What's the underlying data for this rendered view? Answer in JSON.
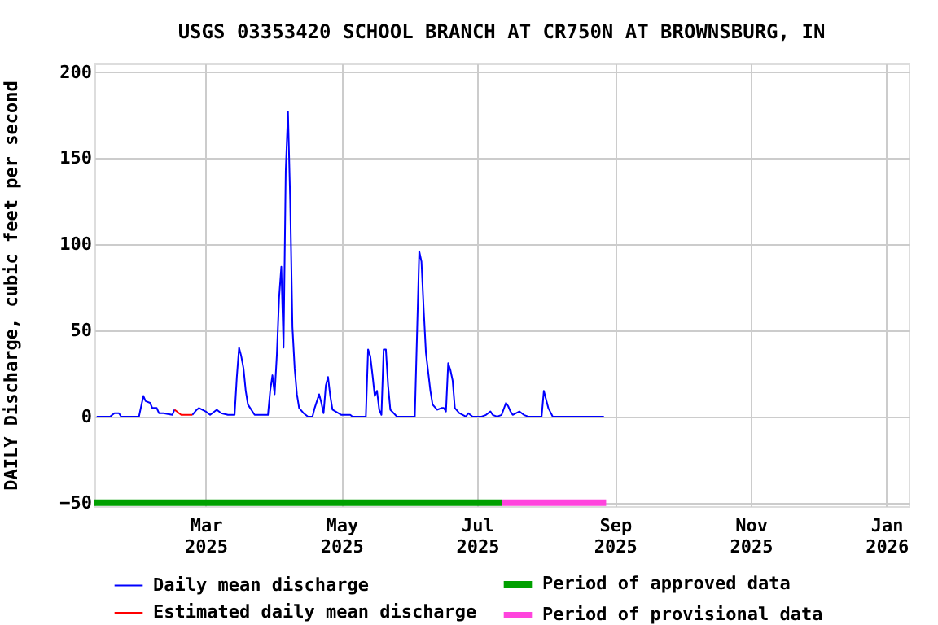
{
  "chart_data": {
    "type": "line",
    "title": "USGS 03353420 SCHOOL BRANCH AT CR750N AT BROWNSBURG, IN",
    "ylabel": "DAILY Discharge, cubic feet per second",
    "xlim": [
      "2025-01-10",
      "2026-01-11"
    ],
    "xticks": [
      {
        "value": "2025-03-01",
        "label": "Mar\n2025"
      },
      {
        "value": "2025-05-01",
        "label": "May\n2025"
      },
      {
        "value": "2025-07-01",
        "label": "Jul\n2025"
      },
      {
        "value": "2025-09-01",
        "label": "Sep\n2025"
      },
      {
        "value": "2025-11-01",
        "label": "Nov\n2025"
      },
      {
        "value": "2026-01-01",
        "label": "Jan\n2026"
      }
    ],
    "ylim": [
      -52,
      205
    ],
    "yticks": [
      -50,
      0,
      50,
      100,
      150,
      200
    ],
    "grid": true,
    "legend": "bottom",
    "marker": "none",
    "line_style": "solid",
    "series": [
      {
        "name": "Daily mean discharge",
        "color": "#0000ff",
        "x": [
          "2025-01-11",
          "2025-01-17",
          "2025-01-19",
          "2025-01-21",
          "2025-01-22",
          "2025-01-30",
          "2025-02-01",
          "2025-02-02",
          "2025-02-04",
          "2025-02-05",
          "2025-02-07",
          "2025-02-08",
          "2025-02-10",
          "2025-02-14",
          "2025-02-15",
          "2025-02-19",
          "2025-02-23",
          "2025-02-25",
          "2025-02-26",
          "2025-03-01",
          "2025-03-03",
          "2025-03-06",
          "2025-03-08",
          "2025-03-11",
          "2025-03-14",
          "2025-03-15",
          "2025-03-16",
          "2025-03-17",
          "2025-03-18",
          "2025-03-19",
          "2025-03-20",
          "2025-03-23",
          "2025-03-29",
          "2025-03-30",
          "2025-03-31",
          "2025-04-01",
          "2025-04-02",
          "2025-04-03",
          "2025-04-04",
          "2025-04-05",
          "2025-04-06",
          "2025-04-07",
          "2025-04-08",
          "2025-04-09",
          "2025-04-10",
          "2025-04-11",
          "2025-04-12",
          "2025-04-14",
          "2025-04-16",
          "2025-04-18",
          "2025-04-19",
          "2025-04-21",
          "2025-04-22",
          "2025-04-23",
          "2025-04-24",
          "2025-04-25",
          "2025-04-26",
          "2025-04-27",
          "2025-05-01",
          "2025-05-05",
          "2025-05-06",
          "2025-05-12",
          "2025-05-13",
          "2025-05-14",
          "2025-05-15",
          "2025-05-16",
          "2025-05-17",
          "2025-05-18",
          "2025-05-19",
          "2025-05-20",
          "2025-05-21",
          "2025-05-22",
          "2025-05-23",
          "2025-05-26",
          "2025-06-03",
          "2025-06-04",
          "2025-06-05",
          "2025-06-06",
          "2025-06-07",
          "2025-06-08",
          "2025-06-09",
          "2025-06-10",
          "2025-06-11",
          "2025-06-13",
          "2025-06-15",
          "2025-06-16",
          "2025-06-17",
          "2025-06-18",
          "2025-06-19",
          "2025-06-20",
          "2025-06-21",
          "2025-06-23",
          "2025-06-26",
          "2025-06-27",
          "2025-06-29",
          "2025-07-03",
          "2025-07-05",
          "2025-07-07",
          "2025-07-08",
          "2025-07-10",
          "2025-07-12",
          "2025-07-14",
          "2025-07-15",
          "2025-07-16",
          "2025-07-17",
          "2025-07-20",
          "2025-07-22",
          "2025-07-24",
          "2025-07-30",
          "2025-07-31",
          "2025-08-01",
          "2025-08-02",
          "2025-08-04",
          "2025-08-27"
        ],
        "values": [
          0,
          0,
          2,
          2,
          0,
          0,
          12,
          9,
          8,
          5,
          5,
          2,
          2,
          1,
          4,
          null,
          1,
          4,
          5,
          3,
          1,
          4,
          2,
          1,
          1,
          23,
          40,
          35,
          28,
          15,
          7,
          1,
          1,
          15,
          24,
          13,
          36,
          69,
          87,
          40,
          143,
          177,
          125,
          52,
          28,
          13,
          5,
          2,
          0,
          0,
          5,
          13,
          8,
          2,
          18,
          23,
          12,
          4,
          1,
          1,
          0,
          0,
          39,
          35,
          24,
          12,
          15,
          4,
          1,
          39,
          39,
          18,
          4,
          0,
          0,
          48,
          96,
          90,
          62,
          37,
          26,
          15,
          7,
          4,
          5,
          5,
          3,
          31,
          27,
          21,
          5,
          2,
          0,
          2,
          0,
          0,
          1,
          3,
          1,
          0,
          1,
          8,
          6,
          3,
          1,
          3,
          1,
          0,
          0,
          15,
          10,
          5,
          0,
          0
        ]
      },
      {
        "name": "Estimated daily mean discharge",
        "color": "#ff0000",
        "x": [
          "2025-02-15",
          "2025-02-16",
          "2025-02-17",
          "2025-02-18",
          "2025-02-20",
          "2025-02-23"
        ],
        "values": [
          4,
          3,
          2,
          1,
          1,
          1
        ]
      },
      {
        "name": "Period of approved data",
        "color": "#00a000",
        "x": [
          "2025-01-10",
          "2025-07-12"
        ],
        "values": [
          -50,
          -50
        ]
      },
      {
        "name": "Period of provisional data",
        "color": "#ff44dd",
        "x": [
          "2025-07-12",
          "2025-08-28"
        ],
        "values": [
          -50,
          -50
        ]
      }
    ]
  }
}
